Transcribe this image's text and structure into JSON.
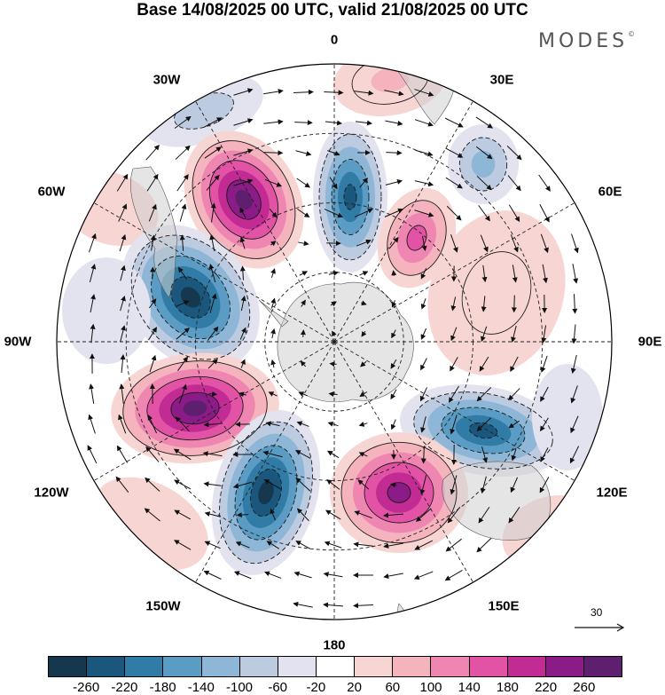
{
  "header": {
    "title": "Base 14/08/2025 00 UTC, valid 21/08/2025 00 UTC",
    "brand": "MODES",
    "brand_mark": "©"
  },
  "map": {
    "projection": "south-polar-stereographic",
    "longitude_labels": {
      "lon_0": "0",
      "lon_30e": "30E",
      "lon_60e": "60E",
      "lon_90e": "90E",
      "lon_120e": "120E",
      "lon_150e": "150E",
      "lon_180": "180",
      "lon_150w": "150W",
      "lon_120w": "120W",
      "lon_90w": "90W",
      "lon_60w": "60W",
      "lon_30w": "30W"
    },
    "reference_vector": {
      "value": "30"
    }
  },
  "colorbar": {
    "colors": [
      "#16384f",
      "#1b577c",
      "#307ca6",
      "#5a9cc4",
      "#8eb6d6",
      "#bdcbe0",
      "#e2e3ee",
      "#ffffff",
      "#f7d5d3",
      "#f4b3bd",
      "#ef86b2",
      "#e353a5",
      "#c22b93",
      "#8b1b86",
      "#5e1f6e"
    ],
    "ticks": [
      "-260",
      "-220",
      "-180",
      "-140",
      "-100",
      "-60",
      "-20",
      "20",
      "60",
      "100",
      "140",
      "180",
      "220",
      "260"
    ]
  }
}
